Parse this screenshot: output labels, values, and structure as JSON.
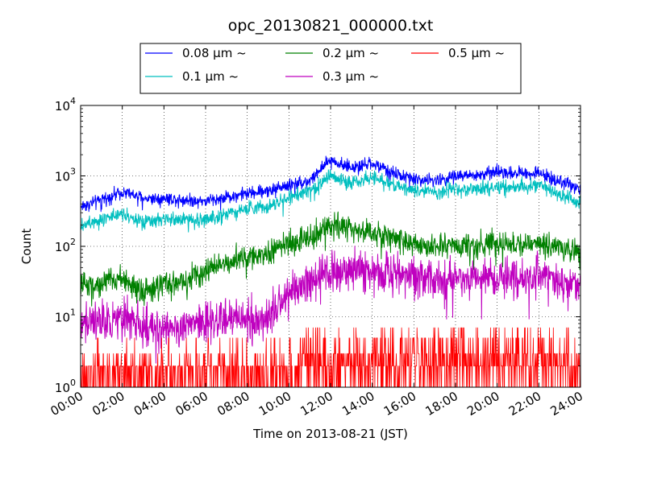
{
  "chart_data": {
    "type": "line",
    "title": "opc_20130821_000000.txt",
    "xlabel": "Time on 2013-08-21 (JST)",
    "ylabel": "Count",
    "y_scale": "log",
    "ylim": [
      1,
      10000
    ],
    "xlim": [
      "00:00",
      "24:00"
    ],
    "x_ticks": [
      "00:00",
      "02:00",
      "04:00",
      "06:00",
      "08:00",
      "10:00",
      "12:00",
      "14:00",
      "16:00",
      "18:00",
      "20:00",
      "22:00",
      "24:00"
    ],
    "y_ticks": [
      {
        "base": "10",
        "exp": "0"
      },
      {
        "base": "10",
        "exp": "1"
      },
      {
        "base": "10",
        "exp": "2"
      },
      {
        "base": "10",
        "exp": "3"
      },
      {
        "base": "10",
        "exp": "4"
      }
    ],
    "grid": true,
    "legend_position": "top-center",
    "x_hours": [
      0,
      1,
      2,
      3,
      4,
      5,
      6,
      7,
      8,
      9,
      10,
      11,
      12,
      13,
      14,
      15,
      16,
      17,
      18,
      19,
      20,
      21,
      22,
      23,
      24
    ],
    "series": [
      {
        "name": "0.08 µm ~",
        "color": "#0000ff",
        "values": [
          370,
          450,
          600,
          480,
          480,
          460,
          440,
          500,
          560,
          620,
          750,
          850,
          1700,
          1300,
          1500,
          1100,
          900,
          850,
          1000,
          1000,
          1150,
          1100,
          1100,
          850,
          650
        ]
      },
      {
        "name": "0.1 µm ~",
        "color": "#00bfbf",
        "values": [
          200,
          250,
          300,
          210,
          240,
          240,
          240,
          300,
          340,
          370,
          480,
          600,
          1000,
          800,
          950,
          750,
          620,
          580,
          650,
          640,
          700,
          700,
          720,
          550,
          420
        ]
      },
      {
        "name": "0.2 µm ~",
        "color": "#008000",
        "values": [
          28,
          30,
          35,
          22,
          28,
          32,
          45,
          60,
          70,
          80,
          110,
          130,
          210,
          180,
          160,
          130,
          110,
          100,
          100,
          100,
          110,
          110,
          110,
          100,
          80
        ]
      },
      {
        "name": "0.3 µm ~",
        "color": "#bf00bf",
        "values": [
          8,
          9,
          10,
          7,
          7,
          7,
          8,
          9,
          9,
          10,
          22,
          30,
          40,
          45,
          42,
          40,
          37,
          35,
          38,
          35,
          35,
          35,
          38,
          32,
          28
        ]
      },
      {
        "name": "0.5 µm ~",
        "color": "#ff0000",
        "values": [
          2,
          2,
          2,
          2,
          2,
          2,
          2,
          2,
          2,
          2,
          2,
          3,
          3,
          3,
          3,
          3,
          3,
          3,
          3,
          3,
          3,
          3,
          3,
          3,
          2
        ]
      }
    ]
  }
}
